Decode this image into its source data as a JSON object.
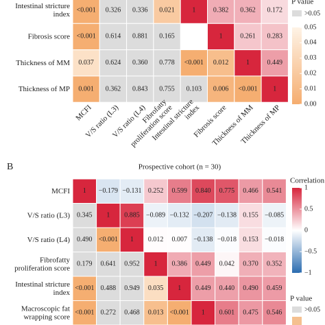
{
  "chart_data": [
    {
      "type": "heatmap",
      "rows": [
        [
          "Intestinal stricture",
          "index"
        ],
        [
          "Fibrosis score"
        ],
        [
          "Thickness of MM"
        ],
        [
          "Thickness of MP"
        ]
      ],
      "columns": [
        [
          "MCFI"
        ],
        [
          "V/S ratio (L3)"
        ],
        [
          "V/S ratio (L4)"
        ],
        [
          "Fibrofatty",
          "proliferation score"
        ],
        [
          "Intestinal stricture",
          "index"
        ],
        [
          "Fibrosis score"
        ],
        [
          "Thickness of MM"
        ],
        [
          "Thickness of MP"
        ]
      ],
      "values": [
        [
          0.001,
          0.326,
          0.336,
          0.021,
          1,
          0.382,
          0.362,
          0.172
        ],
        [
          0.001,
          0.614,
          0.881,
          0.165,
          null,
          1,
          0.261,
          0.283
        ],
        [
          0.037,
          0.624,
          0.36,
          0.778,
          0.001,
          0.012,
          1,
          0.449
        ],
        [
          0.001,
          0.362,
          0.843,
          0.755,
          0.103,
          0.006,
          0.001,
          1
        ]
      ],
      "value_labels": [
        [
          "<0.001",
          "0.326",
          "0.336",
          "0.021",
          "1",
          "0.382",
          "0.362",
          "0.172"
        ],
        [
          "<0.001",
          "0.614",
          "0.881",
          "0.165",
          null,
          "1",
          "0.261",
          "0.283"
        ],
        [
          "0.037",
          "0.624",
          "0.360",
          "0.778",
          "<0.001",
          "0.012",
          "1",
          "0.449"
        ],
        [
          "0.001",
          "0.362",
          "0.843",
          "0.755",
          "0.103",
          "0.006",
          "<0.001",
          "1"
        ]
      ],
      "p_legend": {
        "title": "P value",
        "above_label": ">0.05",
        "lim": [
          0,
          0.05
        ],
        "ticks": [
          0.05,
          0.04,
          0.03,
          0.02,
          0.01,
          {
            "value": 0,
            "label": "0.00"
          }
        ]
      }
    },
    {
      "type": "heatmap",
      "panel_label": "B",
      "title": "Prospective cohort (n = 30)",
      "rows": [
        [
          "MCFI"
        ],
        [
          "V/S ratio (L3)"
        ],
        [
          "V/S ratio (L4)"
        ],
        [
          "Fibrofatty",
          "proliferation score"
        ],
        [
          "Intestinal stricture",
          "index"
        ],
        [
          "Macroscopic fat",
          "wrapping score"
        ]
      ],
      "values": [
        [
          1,
          -0.179,
          -0.131,
          0.252,
          0.599,
          0.84,
          0.775,
          0.466,
          0.541
        ],
        [
          0.345,
          1,
          0.885,
          -0.089,
          -0.132,
          -0.207,
          -0.138,
          0.155,
          -0.085
        ],
        [
          0.49,
          0.001,
          1,
          0.012,
          0.007,
          -0.138,
          -0.018,
          0.153,
          -0.018
        ],
        [
          0.179,
          0.641,
          0.952,
          1,
          0.386,
          0.449,
          0.042,
          0.37,
          0.352
        ],
        [
          0.001,
          0.488,
          0.949,
          0.035,
          1,
          0.449,
          0.44,
          0.49,
          0.459
        ],
        [
          0.001,
          0.272,
          0.468,
          0.013,
          0.001,
          1,
          0.601,
          0.475,
          0.546
        ]
      ],
      "value_labels": [
        [
          "1",
          "−0.179",
          "−0.131",
          "0.252",
          "0.599",
          "0.840",
          "0.775",
          "0.466",
          "0.541"
        ],
        [
          "0.345",
          "1",
          "0.885",
          "−0.089",
          "−0.132",
          "−0.207",
          "−0.138",
          "0.155",
          "−0.085"
        ],
        [
          "0.490",
          "<0.001",
          "1",
          "0.012",
          "0.007",
          "−0.138",
          "−0.018",
          "0.153",
          "−0.018"
        ],
        [
          "0.179",
          "0.641",
          "0.952",
          "1",
          "0.386",
          "0.449",
          "0.042",
          "0.370",
          "0.352"
        ],
        [
          "<0.001",
          "0.488",
          "0.949",
          "0.035",
          "1",
          "0.449",
          "0.440",
          "0.490",
          "0.459"
        ],
        [
          "<0.001",
          "0.272",
          "0.468",
          "0.013",
          "<0.001",
          "1",
          "0.601",
          "0.475",
          "0.546"
        ]
      ],
      "corr_legend": {
        "title": "Correlation",
        "lim": [
          -1,
          1
        ],
        "ticks": [
          1,
          0.5,
          0,
          {
            "value": -0.5,
            "label": "−0.5"
          },
          {
            "value": -1,
            "label": "−1"
          }
        ]
      },
      "p_legend": {
        "title": "P value",
        "above_label": ">0.05"
      }
    }
  ]
}
